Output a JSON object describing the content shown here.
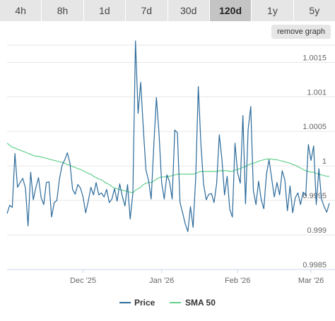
{
  "tabs": [
    {
      "label": "4h",
      "active": false
    },
    {
      "label": "8h",
      "active": false
    },
    {
      "label": "1d",
      "active": false
    },
    {
      "label": "7d",
      "active": false
    },
    {
      "label": "30d",
      "active": false
    },
    {
      "label": "120d",
      "active": true
    },
    {
      "label": "1y",
      "active": false
    },
    {
      "label": "5y",
      "active": false
    }
  ],
  "remove_graph_label": "remove graph",
  "chart_data": {
    "type": "line",
    "x_labels": [
      "Dec '25",
      "Jan '26",
      "Feb '26",
      "Mar '26"
    ],
    "y_ticks": [
      "1.0015",
      "1.001",
      "1.0005",
      "1",
      "0.9995",
      "0.999",
      "0.9985"
    ],
    "ylim": [
      0.9985,
      1.0018
    ],
    "grid": true,
    "legend_placement": "bottom",
    "series": [
      {
        "name": "Price",
        "color": "#2b6a9a",
        "values": [
          0.99931,
          0.99943,
          0.9994,
          1.00018,
          0.99969,
          0.99976,
          0.99982,
          0.99968,
          0.99913,
          0.99991,
          0.99951,
          0.99969,
          0.99983,
          0.99954,
          0.99944,
          0.99976,
          0.99977,
          0.99926,
          0.99947,
          0.9995,
          0.99981,
          1.00001,
          1.00009,
          1.00019,
          1.00004,
          0.99966,
          0.99959,
          0.99973,
          0.99968,
          0.99955,
          0.99932,
          0.99949,
          0.99969,
          0.99958,
          0.99976,
          0.99958,
          0.99961,
          0.99955,
          0.99966,
          0.99947,
          0.99952,
          0.99967,
          0.99949,
          0.99974,
          0.99956,
          0.99942,
          0.99973,
          0.99923,
          0.9996,
          1.00181,
          1.00076,
          1.00121,
          1.00054,
          0.99994,
          0.99979,
          0.99952,
          1.00029,
          1.00099,
          1.00047,
          0.99976,
          0.99952,
          0.99987,
          0.99977,
          0.99952,
          1.00052,
          1.00048,
          0.99947,
          0.99932,
          0.99916,
          0.99905,
          0.99941,
          0.99911,
          0.99982,
          1.00115,
          1.00031,
          0.99974,
          0.99951,
          0.99959,
          0.9996,
          0.99947,
          0.99975,
          1.00045,
          1.0001,
          0.99958,
          0.99985,
          0.99937,
          0.99926,
          1.00033,
          0.9999,
          0.99975,
          1.00073,
          0.99945,
          1.00053,
          1.00086,
          0.99964,
          0.99944,
          0.99978,
          0.99951,
          0.99938,
          0.99988,
          1.00009,
          0.99982,
          0.99955,
          0.99976,
          0.99958,
          0.99993,
          0.9998,
          0.99935,
          0.99971,
          0.99932,
          0.99954,
          0.99961,
          0.99944,
          0.99962,
          0.99957,
          1.00031,
          1.00008,
          1.00029,
          0.99944,
          0.99996,
          0.99952,
          0.99941,
          0.99933,
          0.99946
        ]
      },
      {
        "name": "SMA 50",
        "color": "#62d08c",
        "values": [
          1.00033,
          1.0003,
          1.00027,
          1.00026,
          1.00024,
          1.00023,
          1.00021,
          1.0002,
          1.00018,
          1.00017,
          1.00015,
          1.00014,
          1.00014,
          1.00013,
          1.00012,
          1.00011,
          1.0001,
          1.00009,
          1.00008,
          1.00007,
          1.00006,
          1.00005,
          1.00004,
          1.00002,
          1.00001,
          0.99999,
          0.99998,
          0.99996,
          0.99995,
          0.99993,
          0.99991,
          0.99989,
          0.99988,
          0.99985,
          0.99983,
          0.99981,
          0.9998,
          0.99977,
          0.99975,
          0.99973,
          0.9997,
          0.99968,
          0.99967,
          0.99966,
          0.99965,
          0.99964,
          0.99963,
          0.99962,
          0.99961,
          0.99965,
          0.99967,
          0.99969,
          0.99973,
          0.99975,
          0.99976,
          0.99976,
          0.99978,
          0.99981,
          0.99983,
          0.99984,
          0.99984,
          0.99985,
          0.99985,
          0.99986,
          0.99987,
          0.99988,
          0.99988,
          0.99988,
          0.99988,
          0.99988,
          0.99988,
          0.99988,
          0.99989,
          0.99991,
          0.99992,
          0.99992,
          0.99992,
          0.99992,
          0.99992,
          0.99992,
          0.99992,
          0.99993,
          0.99993,
          0.99993,
          0.99993,
          0.99992,
          0.99992,
          0.99994,
          0.99995,
          0.99996,
          0.99998,
          0.99999,
          1.00001,
          1.00003,
          1.00004,
          1.00005,
          1.00007,
          1.00008,
          1.00009,
          1.0001,
          1.0001,
          1.0001,
          1.00009,
          1.00009,
          1.00008,
          1.00007,
          1.00006,
          1.00005,
          1.00004,
          1.00002,
          1.00001,
          0.99999,
          0.99997,
          0.99995,
          0.99993,
          0.99992,
          0.99991,
          0.99991,
          0.99989,
          0.99988,
          0.99987,
          0.99986,
          0.99985,
          0.99985
        ]
      }
    ]
  }
}
